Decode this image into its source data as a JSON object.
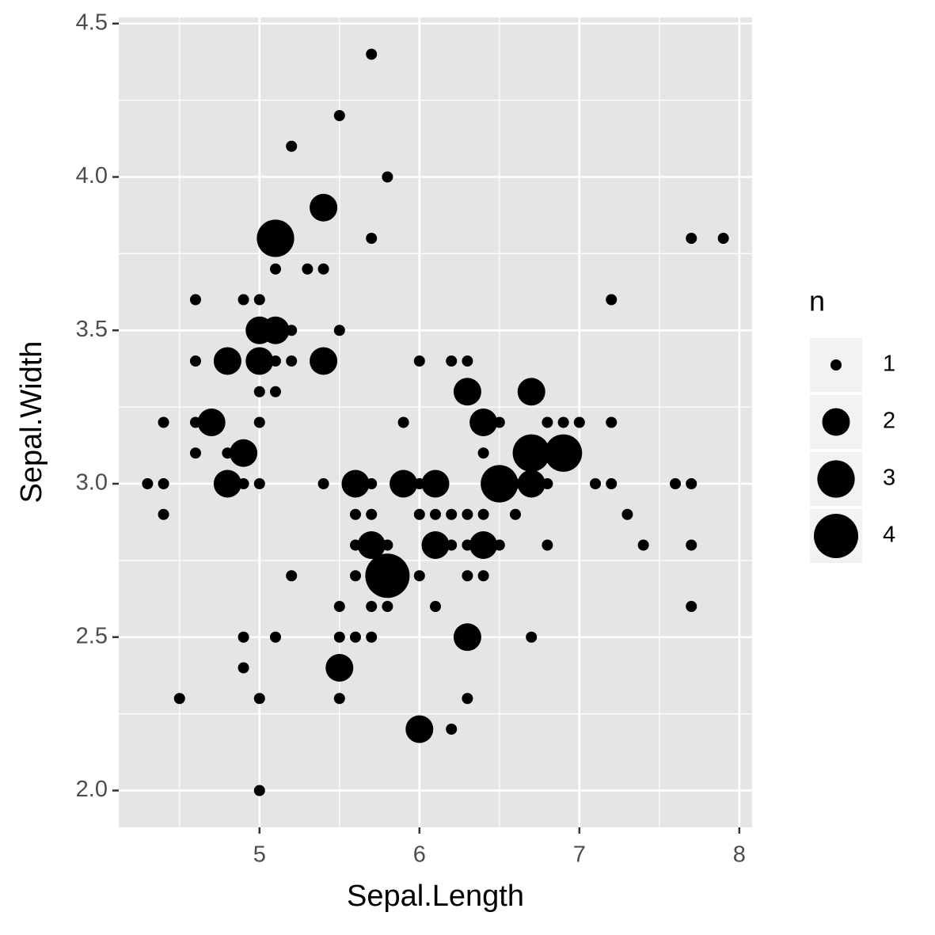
{
  "chart_data": {
    "type": "scatter",
    "x_label": "Sepal.Length",
    "y_label": "Sepal.Width",
    "x": [
      4.3,
      4.4,
      4.4,
      4.4,
      4.5,
      4.6,
      4.6,
      4.6,
      4.6,
      4.7,
      4.8,
      4.8,
      4.8,
      4.9,
      4.9,
      4.9,
      4.9,
      4.9,
      5.0,
      5.0,
      5.0,
      5.0,
      5.0,
      5.0,
      5.0,
      5.0,
      5.1,
      5.1,
      5.1,
      5.1,
      5.1,
      5.1,
      5.2,
      5.2,
      5.2,
      5.2,
      5.3,
      5.4,
      5.4,
      5.4,
      5.4,
      5.5,
      5.5,
      5.5,
      5.5,
      5.5,
      5.5,
      5.6,
      5.6,
      5.6,
      5.6,
      5.6,
      5.7,
      5.7,
      5.7,
      5.7,
      5.7,
      5.7,
      5.7,
      5.8,
      5.8,
      5.8,
      5.8,
      5.9,
      5.9,
      6.0,
      6.0,
      6.0,
      6.0,
      6.0,
      6.1,
      6.1,
      6.1,
      6.1,
      6.2,
      6.2,
      6.2,
      6.2,
      6.3,
      6.3,
      6.3,
      6.3,
      6.3,
      6.3,
      6.3,
      6.4,
      6.4,
      6.4,
      6.4,
      6.4,
      6.5,
      6.5,
      6.5,
      6.6,
      6.6,
      6.7,
      6.7,
      6.7,
      6.7,
      6.8,
      6.8,
      6.8,
      6.9,
      6.9,
      7.0,
      7.1,
      7.2,
      7.2,
      7.2,
      7.3,
      7.4,
      7.6,
      7.7,
      7.7,
      7.7,
      7.7,
      7.9
    ],
    "values": [
      3.0,
      2.9,
      3.0,
      3.2,
      2.3,
      3.1,
      3.4,
      3.6,
      3.2,
      3.2,
      3.4,
      3.0,
      3.1,
      3.0,
      3.1,
      3.6,
      2.4,
      2.5,
      3.6,
      3.4,
      3.0,
      3.2,
      3.5,
      3.3,
      2.0,
      2.3,
      3.5,
      3.8,
      3.7,
      3.3,
      3.4,
      2.5,
      3.5,
      3.4,
      4.1,
      2.7,
      3.7,
      3.9,
      3.7,
      3.4,
      3.0,
      4.2,
      3.5,
      2.3,
      2.4,
      2.5,
      2.6,
      2.9,
      3.0,
      2.5,
      2.7,
      2.8,
      4.4,
      3.8,
      2.8,
      2.6,
      3.0,
      2.9,
      2.5,
      4.0,
      2.7,
      2.6,
      2.8,
      3.0,
      3.2,
      2.2,
      2.9,
      2.7,
      3.4,
      3.0,
      2.9,
      2.8,
      3.0,
      2.6,
      2.2,
      2.9,
      2.8,
      3.4,
      3.3,
      2.5,
      2.3,
      2.9,
      2.7,
      2.8,
      3.4,
      3.2,
      2.9,
      2.7,
      2.8,
      3.1,
      2.8,
      3.2,
      3.0,
      2.9,
      3.0,
      3.1,
      3.0,
      2.5,
      3.3,
      2.8,
      3.0,
      3.2,
      3.1,
      3.2,
      3.2,
      3.0,
      3.6,
      3.2,
      3.0,
      2.9,
      2.8,
      3.0,
      3.8,
      2.6,
      2.8,
      3.0,
      3.8
    ],
    "sizes": [
      1,
      1,
      1,
      1,
      1,
      1,
      1,
      1,
      1,
      2,
      2,
      2,
      1,
      1,
      2,
      1,
      1,
      1,
      1,
      2,
      1,
      1,
      2,
      1,
      1,
      1,
      2,
      3,
      1,
      1,
      1,
      1,
      1,
      1,
      1,
      1,
      1,
      2,
      1,
      2,
      1,
      1,
      1,
      1,
      2,
      1,
      1,
      1,
      2,
      1,
      1,
      1,
      1,
      1,
      2,
      1,
      1,
      1,
      1,
      1,
      4,
      1,
      1,
      2,
      1,
      2,
      1,
      1,
      1,
      1,
      1,
      2,
      2,
      1,
      1,
      1,
      1,
      1,
      2,
      2,
      1,
      1,
      1,
      1,
      1,
      2,
      1,
      1,
      2,
      1,
      1,
      1,
      3,
      1,
      1,
      3,
      2,
      1,
      2,
      1,
      1,
      1,
      3,
      1,
      1,
      1,
      1,
      1,
      1,
      1,
      1,
      1,
      1,
      1,
      1,
      1,
      1
    ],
    "color": "#000000",
    "xlim": [
      4.12,
      8.08
    ],
    "xticks": [
      5,
      6,
      7,
      8
    ],
    "ylim": [
      1.88,
      4.52
    ],
    "yticks": [
      {
        "value": 2.0,
        "label": "2.0"
      },
      2.5,
      {
        "value": 3.0,
        "label": "3.0"
      },
      3.5,
      {
        "value": 4.0,
        "label": "4.0"
      },
      4.5
    ],
    "grid": true,
    "legend": {
      "title": "n",
      "values": [
        1,
        2,
        3,
        4
      ]
    }
  }
}
